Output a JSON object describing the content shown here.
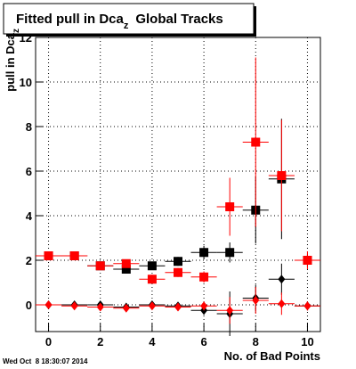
{
  "chart_data": {
    "type": "scatter",
    "title": {
      "text": "Fitted pull in Dca",
      "subscript": "z",
      "rest": "Global Tracks"
    },
    "y_label": {
      "text": "pull in Dca",
      "subscript": "z"
    },
    "x_label": "No. of Bad Points",
    "timestamp": "Wed Oct  8 18:30:07 2014",
    "xlim": [
      -0.5,
      10.5
    ],
    "ylim": [
      -1.2,
      12
    ],
    "xticks": [
      0,
      2,
      4,
      6,
      8,
      10
    ],
    "yticks": [
      0,
      2,
      4,
      6,
      8,
      10,
      12
    ],
    "grid": true,
    "x": [
      0,
      1,
      2,
      3,
      4,
      5,
      6,
      7,
      8,
      9,
      10
    ],
    "series": [
      {
        "color": "#000000",
        "marker": "square",
        "values": [
          2.2,
          2.2,
          1.75,
          1.6,
          1.75,
          1.95,
          2.35,
          2.35,
          4.25,
          5.65,
          2.0
        ],
        "errors": [
          0.1,
          0.1,
          0.1,
          0.15,
          0.15,
          0.2,
          0.3,
          0.45,
          1.5,
          2.7,
          0.3
        ]
      },
      {
        "color": "#ff0000",
        "marker": "square",
        "values": [
          2.2,
          2.2,
          1.75,
          1.85,
          1.15,
          1.45,
          1.25,
          4.4,
          7.3,
          5.8,
          2.0
        ],
        "errors": [
          0.1,
          0.1,
          0.1,
          0.15,
          0.2,
          0.2,
          0.25,
          1.3,
          3.8,
          2.5,
          0.4
        ]
      },
      {
        "color": "#000000",
        "marker": "diamond",
        "values": [
          0,
          0,
          0,
          -0.1,
          0,
          -0.05,
          -0.25,
          -0.4,
          0.3,
          1.15,
          -0.05
        ],
        "errors": [
          0.05,
          0.05,
          0.05,
          0.1,
          0.1,
          0.15,
          0.2,
          1.0,
          0.6,
          0.7,
          0.2
        ]
      },
      {
        "color": "#ff0000",
        "marker": "diamond",
        "values": [
          0,
          -0.05,
          -0.1,
          -0.15,
          -0.05,
          -0.1,
          -0.05,
          -0.25,
          0.2,
          0.05,
          -0.05
        ],
        "errors": [
          0.05,
          0.05,
          0.05,
          0.1,
          0.1,
          0.1,
          0.2,
          0.6,
          0.6,
          0.5,
          0.2
        ]
      }
    ]
  }
}
